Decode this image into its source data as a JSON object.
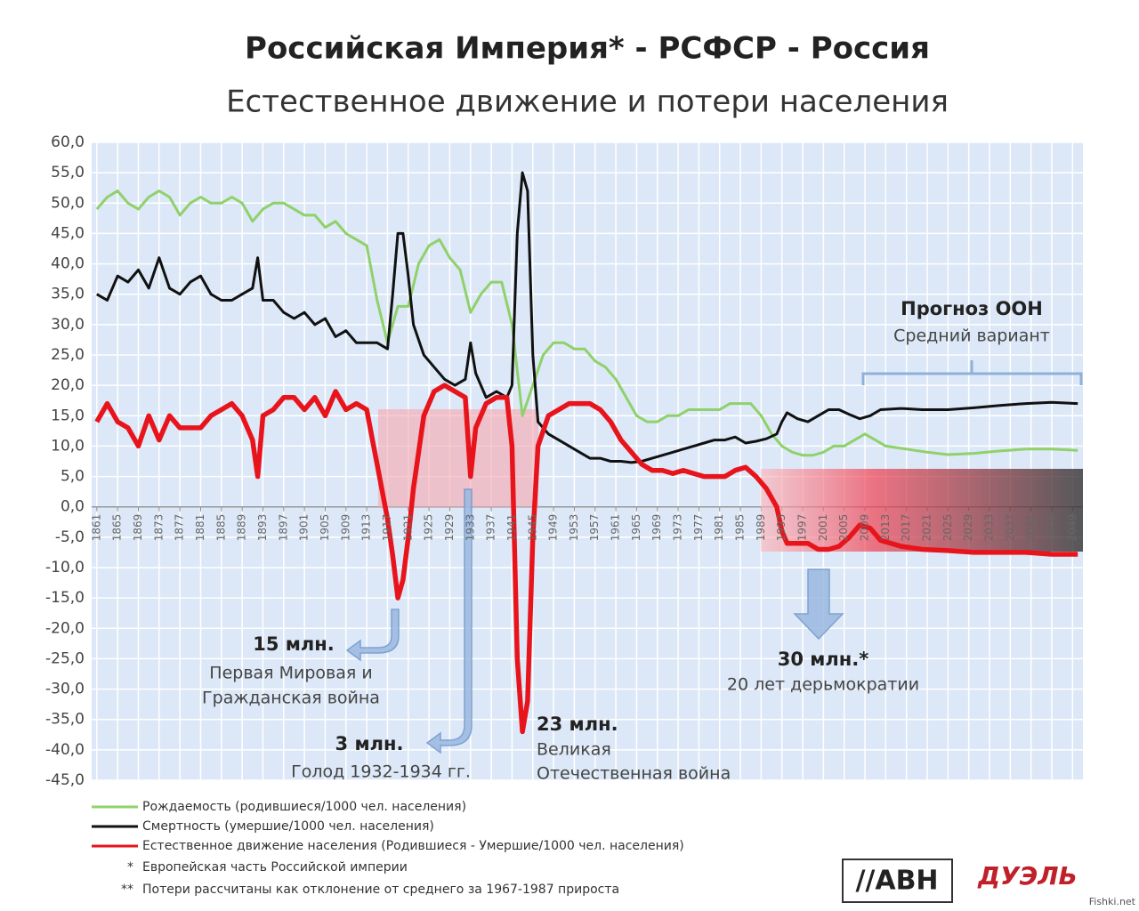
{
  "chart_data": {
    "type": "line",
    "title": "Российская Империя* - РСФСР - Россия",
    "subtitle": "Естественное движение и потери населения",
    "xlim": [
      1860,
      2051
    ],
    "ylim": [
      -45,
      60
    ],
    "xticks": [
      1861,
      1865,
      1869,
      1873,
      1877,
      1881,
      1885,
      1889,
      1893,
      1897,
      1901,
      1905,
      1909,
      1913,
      1917,
      1921,
      1925,
      1929,
      1933,
      1937,
      1941,
      1945,
      1949,
      1953,
      1957,
      1961,
      1965,
      1969,
      1973,
      1977,
      1981,
      1985,
      1989,
      1993,
      1997,
      2001,
      2005,
      2009,
      2013,
      2017,
      2021,
      2025,
      2029,
      2033,
      2037,
      2041,
      2045,
      2049
    ],
    "yticks": [
      {
        "value": 60,
        "label": "60,0"
      },
      {
        "value": 55,
        "label": "55,0"
      },
      {
        "value": 50,
        "label": "50,0"
      },
      {
        "value": 45,
        "label": "45,0"
      },
      {
        "value": 40,
        "label": "40,0"
      },
      {
        "value": 35,
        "label": "35,0"
      },
      {
        "value": 30,
        "label": "30,0"
      },
      {
        "value": 25,
        "label": "25,0"
      },
      {
        "value": 20,
        "label": "20,0"
      },
      {
        "value": 15,
        "label": "15,0"
      },
      {
        "value": 10,
        "label": "10,0"
      },
      {
        "value": 5,
        "label": "5,0"
      },
      {
        "value": 0,
        "label": "0,0"
      },
      {
        "value": -5,
        "label": "-5,0"
      },
      {
        "value": -10,
        "label": "-10,0"
      },
      {
        "value": -15,
        "label": "-15,0"
      },
      {
        "value": -20,
        "label": "-20,0"
      },
      {
        "value": -25,
        "label": "-25,0"
      },
      {
        "value": -30,
        "label": "-30,0"
      },
      {
        "value": -35,
        "label": "-35,0"
      },
      {
        "value": -40,
        "label": "-40,0"
      },
      {
        "value": -45,
        "label": "-45,0"
      }
    ],
    "grid": true,
    "series": [
      {
        "name": "Рождаемость (родившиеся/1000 чел. населения)",
        "color": "#8fd16a",
        "x": [
          1861,
          1863,
          1865,
          1867,
          1869,
          1871,
          1873,
          1875,
          1877,
          1879,
          1881,
          1883,
          1885,
          1887,
          1889,
          1891,
          1893,
          1895,
          1897,
          1899,
          1901,
          1903,
          1905,
          1907,
          1909,
          1911,
          1913,
          1915,
          1917,
          1919,
          1921,
          1923,
          1925,
          1927,
          1929,
          1931,
          1933,
          1935,
          1937,
          1939,
          1941,
          1943,
          1945,
          1947,
          1949,
          1951,
          1953,
          1955,
          1957,
          1959,
          1961,
          1963,
          1965,
          1967,
          1969,
          1971,
          1973,
          1975,
          1977,
          1979,
          1981,
          1983,
          1985,
          1987,
          1989,
          1991,
          1993,
          1995,
          1997,
          1999,
          2001,
          2003,
          2005,
          2007,
          2009,
          2011,
          2013,
          2017,
          2021,
          2025,
          2030,
          2035,
          2040,
          2045,
          2050
        ],
        "values": [
          49,
          51,
          52,
          50,
          49,
          51,
          52,
          51,
          48,
          50,
          51,
          50,
          50,
          51,
          50,
          47,
          49,
          50,
          50,
          49,
          48,
          48,
          46,
          47,
          45,
          44,
          43,
          34,
          27,
          33,
          33,
          40,
          43,
          44,
          41,
          39,
          32,
          35,
          37,
          37,
          30,
          15,
          20,
          25,
          27,
          27,
          26,
          26,
          24,
          23,
          21,
          18,
          15,
          14,
          14,
          15,
          15,
          16,
          16,
          16,
          16,
          17,
          17,
          17,
          15,
          12,
          10,
          9,
          8.5,
          8.5,
          9,
          10,
          10,
          11,
          12,
          11,
          10,
          9.5,
          9,
          8.6,
          8.8,
          9.2,
          9.5,
          9.5,
          9.3
        ]
      },
      {
        "name": "Смертность (умершие/1000 чел. населения)",
        "color": "#111111",
        "x": [
          1861,
          1863,
          1865,
          1867,
          1869,
          1871,
          1873,
          1875,
          1877,
          1879,
          1881,
          1883,
          1885,
          1887,
          1889,
          1891,
          1892,
          1893,
          1895,
          1897,
          1899,
          1901,
          1903,
          1905,
          1907,
          1909,
          1911,
          1913,
          1915,
          1917,
          1918,
          1919,
          1920,
          1921,
          1922,
          1924,
          1926,
          1928,
          1930,
          1932,
          1933,
          1934,
          1936,
          1938,
          1940,
          1941,
          1942,
          1943,
          1944,
          1945,
          1946,
          1948,
          1950,
          1952,
          1954,
          1956,
          1958,
          1960,
          1962,
          1964,
          1966,
          1968,
          1970,
          1972,
          1974,
          1976,
          1978,
          1980,
          1982,
          1984,
          1986,
          1988,
          1990,
          1992,
          1993,
          1994,
          1996,
          1998,
          2000,
          2002,
          2004,
          2006,
          2008,
          2010,
          2012,
          2016,
          2020,
          2025,
          2030,
          2035,
          2040,
          2045,
          2050
        ],
        "values": [
          35,
          34,
          38,
          37,
          39,
          36,
          41,
          36,
          35,
          37,
          38,
          35,
          34,
          34,
          35,
          36,
          41,
          34,
          34,
          32,
          31,
          32,
          30,
          31,
          28,
          29,
          27,
          27,
          27,
          26,
          35,
          45,
          45,
          38,
          30,
          25,
          23,
          21,
          20,
          21,
          27,
          22,
          18,
          19,
          18,
          20,
          45,
          55,
          52,
          25,
          14,
          12,
          11,
          10,
          9,
          8,
          8,
          7.5,
          7.5,
          7.3,
          7.5,
          8,
          8.5,
          9,
          9.5,
          10,
          10.5,
          11,
          11,
          11.5,
          10.5,
          10.8,
          11.2,
          12,
          14,
          15.5,
          14.5,
          14,
          15,
          16,
          16,
          15.2,
          14.5,
          15,
          16,
          16.2,
          16,
          16,
          16.3,
          16.7,
          17,
          17.2,
          17
        ]
      },
      {
        "name": "Естественное движение населения (Родившиеся - Умершие/1000 чел. населения)",
        "color": "#e8141c",
        "x": [
          1861,
          1863,
          1865,
          1867,
          1869,
          1871,
          1873,
          1875,
          1877,
          1879,
          1881,
          1883,
          1885,
          1887,
          1889,
          1891,
          1892,
          1893,
          1895,
          1897,
          1899,
          1901,
          1903,
          1905,
          1907,
          1909,
          1911,
          1913,
          1915,
          1917,
          1918,
          1919,
          1920,
          1921,
          1922,
          1924,
          1926,
          1928,
          1930,
          1932,
          1933,
          1934,
          1936,
          1938,
          1940,
          1941,
          1942,
          1943,
          1944,
          1945,
          1946,
          1948,
          1950,
          1952,
          1954,
          1956,
          1958,
          1960,
          1962,
          1964,
          1966,
          1968,
          1970,
          1972,
          1974,
          1976,
          1978,
          1980,
          1982,
          1984,
          1986,
          1988,
          1990,
          1992,
          1993,
          1994,
          1996,
          1998,
          2000,
          2002,
          2004,
          2006,
          2008,
          2010,
          2012,
          2016,
          2020,
          2025,
          2030,
          2035,
          2040,
          2045,
          2050
        ],
        "values": [
          14,
          17,
          14,
          13,
          10,
          15,
          11,
          15,
          13,
          13,
          13,
          15,
          16,
          17,
          15,
          11,
          5,
          15,
          16,
          18,
          18,
          16,
          18,
          15,
          19,
          16,
          17,
          16,
          7,
          -2,
          -8,
          -15,
          -12,
          -5,
          3,
          15,
          19,
          20,
          19,
          18,
          5,
          13,
          17,
          18,
          18,
          10,
          -25,
          -37,
          -32,
          -5,
          10,
          15,
          16,
          17,
          17,
          17,
          16,
          14,
          11,
          9,
          7,
          6,
          6,
          5.5,
          6,
          5.5,
          5,
          5,
          5,
          6,
          6.5,
          5,
          3,
          0,
          -4,
          -6,
          -6,
          -6,
          -7,
          -7,
          -6.5,
          -5,
          -3,
          -3.5,
          -5.5,
          -6.5,
          -7,
          -7.2,
          -7.5,
          -7.5,
          -7.5,
          -7.8,
          -7.8
        ]
      }
    ],
    "annotations": [
      {
        "text": "15 млн.",
        "bold": true
      },
      {
        "text": "Первая Мировая и"
      },
      {
        "text": "Гражданская война"
      },
      {
        "text": "3 млн.",
        "bold": true
      },
      {
        "text": "Голод 1932-1934 гг."
      },
      {
        "text": "23 млн.",
        "bold": true
      },
      {
        "text": "Великая"
      },
      {
        "text": "Отечественная война"
      },
      {
        "text": "30 млн.*",
        "bold": true
      },
      {
        "text": "20 лет дерьмократии"
      },
      {
        "text": "Прогноз ООН",
        "bold": true
      },
      {
        "text": "Средний вариант"
      }
    ],
    "footnotes": [
      "*",
      "Европейская часть Российской империи",
      "**",
      "Потери рассчитаны как отклонение от среднего за 1967-1987 прироста"
    ],
    "logos": [
      "//АВН",
      "ДУЭЛЬ"
    ],
    "watermark": "Fishki.net"
  }
}
